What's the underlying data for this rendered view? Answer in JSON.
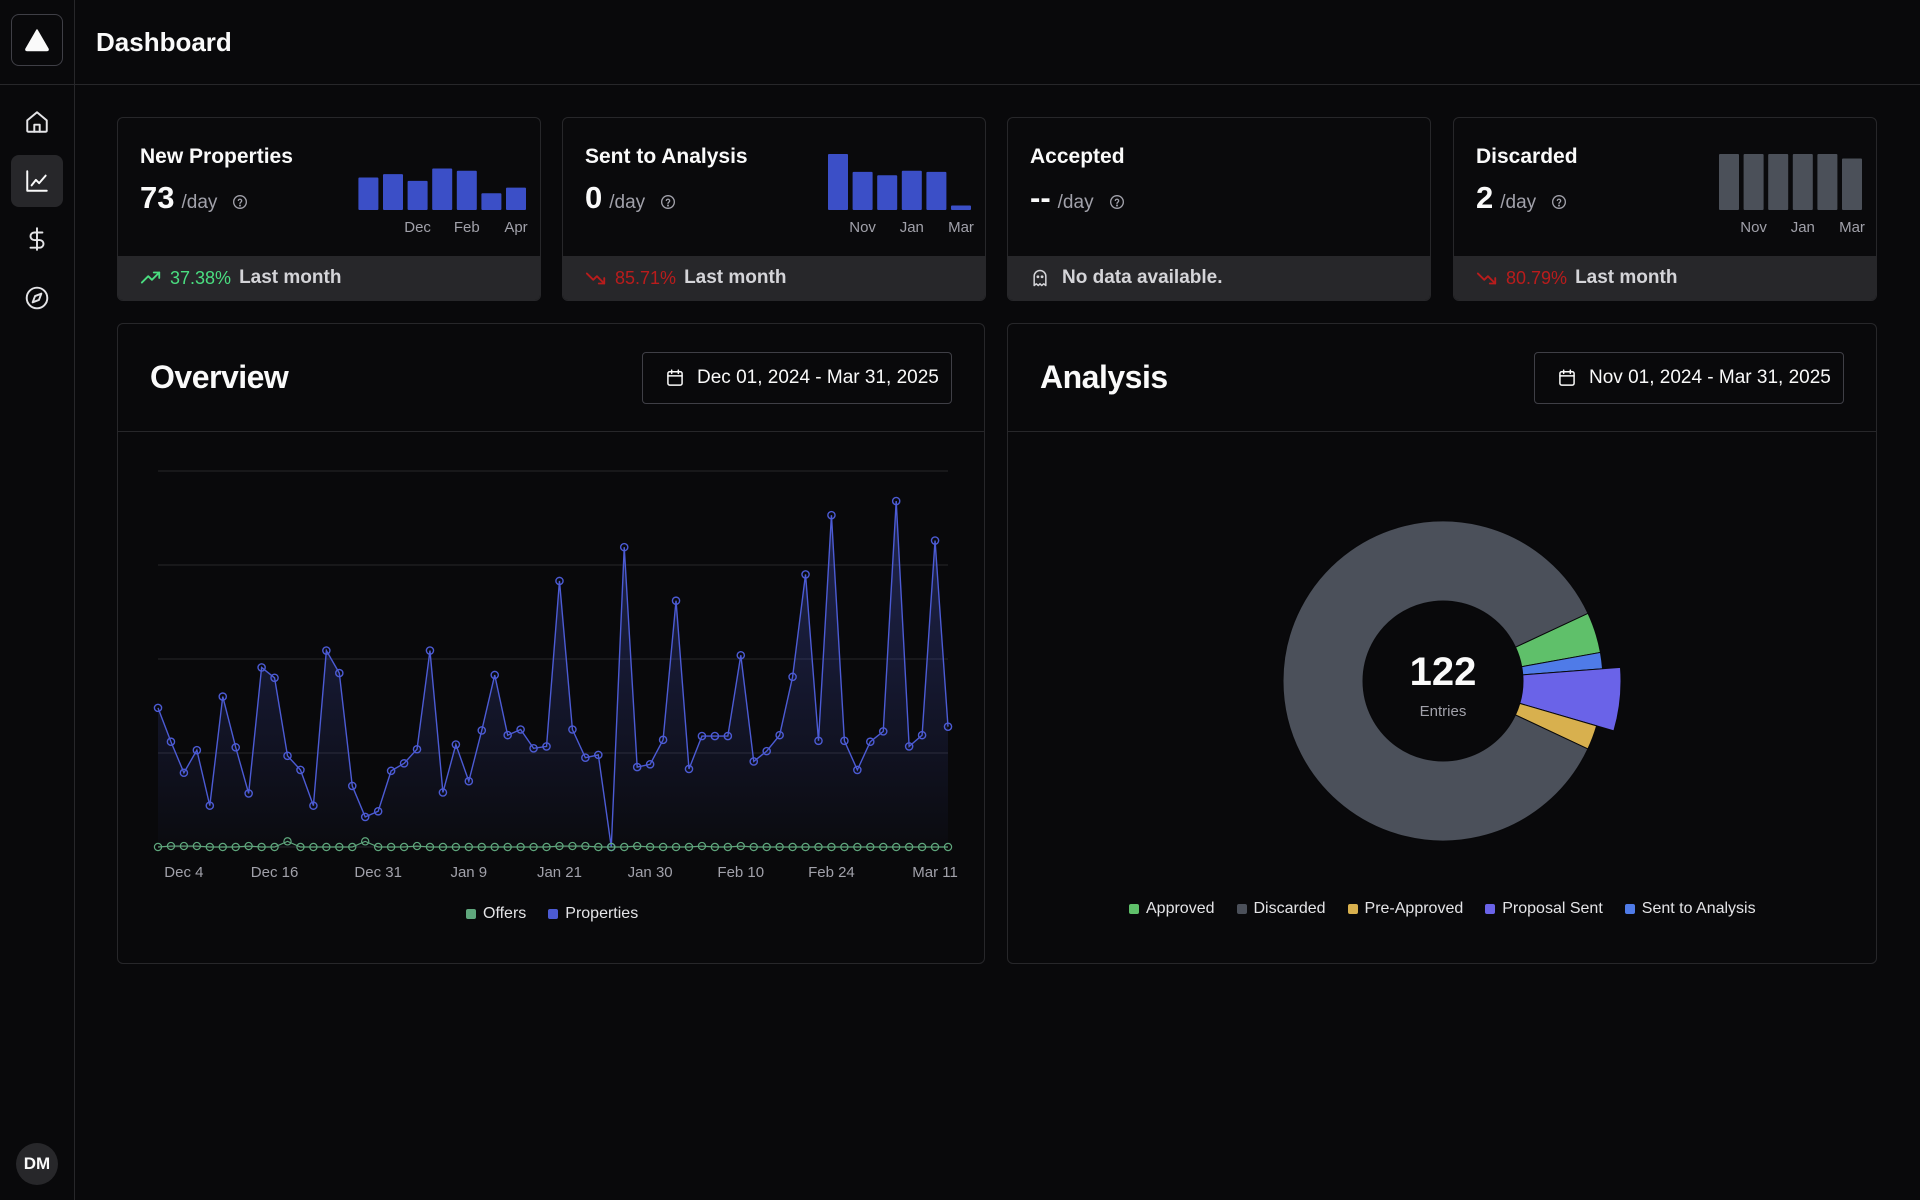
{
  "header": {
    "title": "Dashboard"
  },
  "sidebar": {
    "items": [
      {
        "icon": "home-icon",
        "label": "Home",
        "active": false
      },
      {
        "icon": "chart-line-icon",
        "label": "Analytics",
        "active": true
      },
      {
        "icon": "dollar-icon",
        "label": "Finance",
        "active": false
      },
      {
        "icon": "compass-icon",
        "label": "Explore",
        "active": false
      }
    ],
    "avatar_initials": "DM"
  },
  "kpis": [
    {
      "title": "New Properties",
      "value": "73",
      "unit": "/day",
      "trend_direction": "up",
      "trend": "37.38%",
      "footer": "Last month",
      "bars": [
        0.58,
        0.64,
        0.52,
        0.74,
        0.7,
        0.3,
        0.4
      ],
      "bar_color": "#3b4fc7",
      "tick_labels": [
        "Dec",
        "Feb",
        "Apr"
      ]
    },
    {
      "title": "Sent to Analysis",
      "value": "0",
      "unit": "/day",
      "trend_direction": "down",
      "trend": "85.71%",
      "footer": "Last month",
      "bars": [
        1.0,
        0.68,
        0.62,
        0.7,
        0.68,
        0.08
      ],
      "bar_color": "#3b4fc7",
      "tick_labels": [
        "Nov",
        "Jan",
        "Mar"
      ]
    },
    {
      "title": "Accepted",
      "value": "--",
      "unit": "/day",
      "footer": "No data available.",
      "footer_icon": "ghost-icon"
    },
    {
      "title": "Discarded",
      "value": "2",
      "unit": "/day",
      "trend_direction": "down",
      "trend": "80.79%",
      "footer": "Last month",
      "bars": [
        1.0,
        1.0,
        1.0,
        1.0,
        1.0,
        0.92
      ],
      "bar_color": "#4b5059",
      "tick_labels": [
        "Nov",
        "Jan",
        "Mar"
      ]
    }
  ],
  "overview": {
    "title": "Overview",
    "date_range": "Dec 01, 2024 - Mar 31, 2025",
    "legend": [
      {
        "name": "Offers",
        "color": "#5fa77d"
      },
      {
        "name": "Properties",
        "color": "#4c5bd4"
      }
    ],
    "chart_data": {
      "type": "area",
      "x_tick_labels": [
        "Dec 4",
        "Dec 16",
        "Dec 31",
        "Jan 9",
        "Jan 21",
        "Jan 30",
        "Feb 10",
        "Feb 24",
        "Mar 11"
      ],
      "ylim": [
        0,
        4
      ],
      "grid": true,
      "legend_position": "bottom",
      "series": [
        {
          "name": "Properties",
          "color": "#4c5bd4",
          "values": [
            1.48,
            1.12,
            0.79,
            1.03,
            0.44,
            1.6,
            1.06,
            0.57,
            1.91,
            1.8,
            0.97,
            0.82,
            0.44,
            2.09,
            1.85,
            0.65,
            0.32,
            0.38,
            0.81,
            0.89,
            1.04,
            2.09,
            0.58,
            1.09,
            0.7,
            1.24,
            1.83,
            1.19,
            1.25,
            1.05,
            1.07,
            2.83,
            1.25,
            0.95,
            0.98,
            0.0,
            3.19,
            0.85,
            0.88,
            1.14,
            2.62,
            0.83,
            1.18,
            1.18,
            1.18,
            2.04,
            0.91,
            1.02,
            1.19,
            1.81,
            2.9,
            1.13,
            3.53,
            1.13,
            0.82,
            1.12,
            1.23,
            3.68,
            1.07,
            1.19,
            3.26,
            1.28
          ]
        },
        {
          "name": "Offers",
          "color": "#5fa77d",
          "values": [
            0,
            0.01,
            0.01,
            0.01,
            0,
            0,
            0,
            0.01,
            0,
            0,
            0.06,
            0,
            0,
            0,
            0,
            0,
            0.06,
            0,
            0,
            0,
            0.01,
            0,
            0,
            0,
            0,
            0,
            0,
            0,
            0,
            0,
            0,
            0.01,
            0.01,
            0.01,
            0,
            0,
            0,
            0.01,
            0,
            0,
            0,
            0,
            0.01,
            0,
            0,
            0.01,
            0,
            0,
            0,
            0,
            0,
            0,
            0,
            0,
            0,
            0,
            0,
            0,
            0,
            0,
            0,
            0
          ]
        }
      ]
    }
  },
  "analysis": {
    "title": "Analysis",
    "date_range": "Nov 01, 2024 - Mar 31, 2025",
    "center_value": "122",
    "center_label": "Entries",
    "legend_position": "bottom",
    "chart_data": {
      "type": "pie",
      "total": 122,
      "categories": [
        "Approved",
        "Discarded",
        "Pre-Approved",
        "Proposal Sent",
        "Sent to Analysis"
      ],
      "values": [
        5,
        105,
        3,
        7,
        2
      ],
      "colors": [
        "#5fc06a",
        "#4b505a",
        "#d8b04e",
        "#6a63e8",
        "#4f7be8"
      ]
    }
  }
}
